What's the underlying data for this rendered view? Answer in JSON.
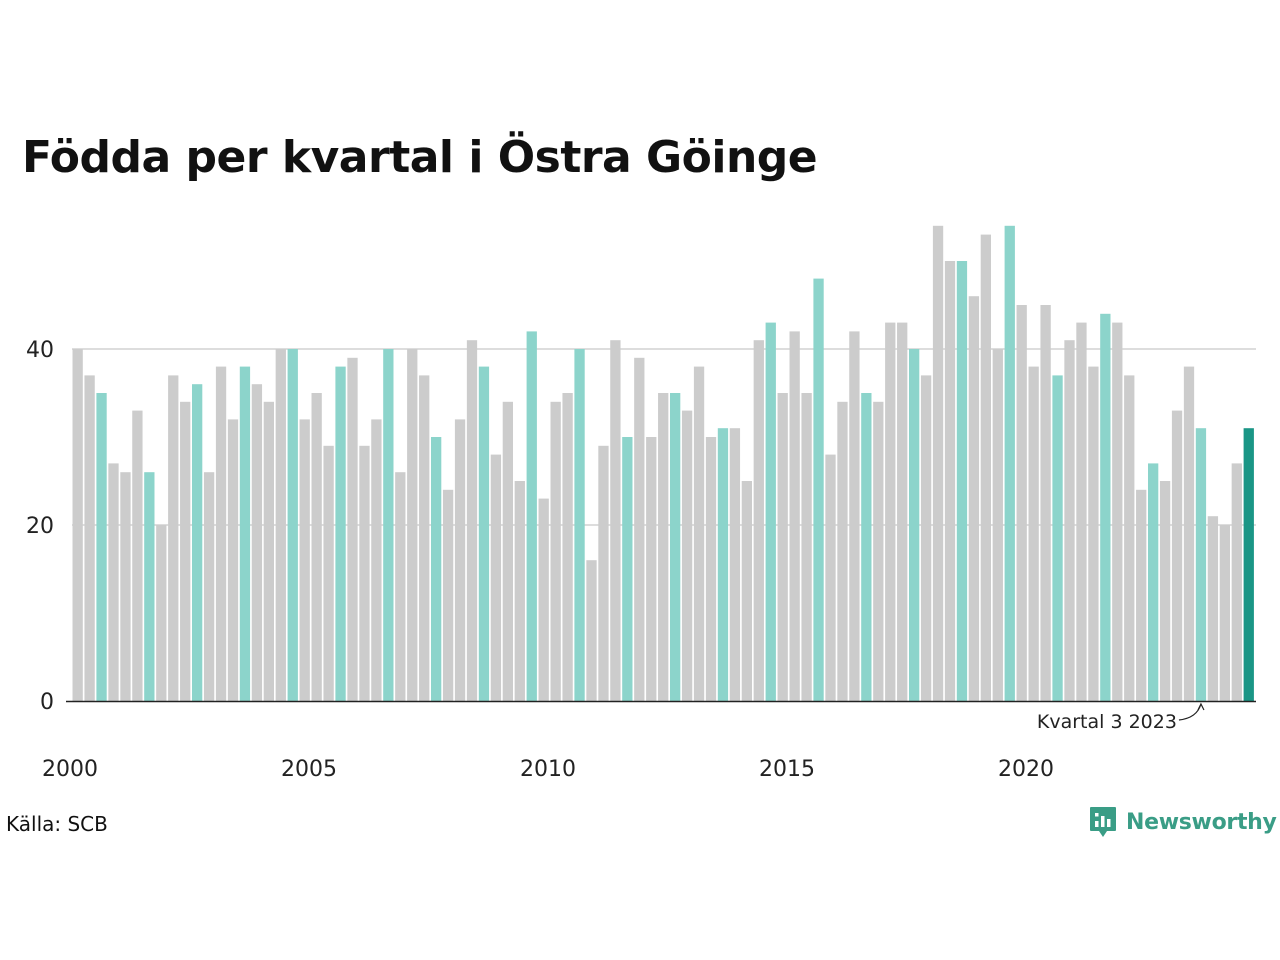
{
  "title": "Födda per kvartal i Östra Göinge",
  "source": "Källa: SCB",
  "brand": "Newsworthy",
  "colors": {
    "default": "#cccccc",
    "highlight": "#8cd4cb",
    "latest": "#1a9686",
    "brand": "#3a9d86",
    "grid": "#dddddd",
    "axis": "#222222"
  },
  "chart_data": {
    "type": "bar",
    "title": "Födda per kvartal i Östra Göinge",
    "xlabel": "",
    "ylabel": "",
    "ylim": [
      0,
      55
    ],
    "yticks": [
      0,
      20,
      40
    ],
    "xtick_labels": [
      "2000",
      "2005",
      "2010",
      "2015",
      "2020"
    ],
    "grid": true,
    "highlight_quarter": 3,
    "categories": [
      "2000 K1",
      "2000 K2",
      "2000 K3",
      "2000 K4",
      "2001 K1",
      "2001 K2",
      "2001 K3",
      "2001 K4",
      "2002 K1",
      "2002 K2",
      "2002 K3",
      "2002 K4",
      "2003 K1",
      "2003 K2",
      "2003 K3",
      "2003 K4",
      "2004 K1",
      "2004 K2",
      "2004 K3",
      "2004 K4",
      "2005 K1",
      "2005 K2",
      "2005 K3",
      "2005 K4",
      "2006 K1",
      "2006 K2",
      "2006 K3",
      "2006 K4",
      "2007 K1",
      "2007 K2",
      "2007 K3",
      "2007 K4",
      "2008 K1",
      "2008 K2",
      "2008 K3",
      "2008 K4",
      "2009 K1",
      "2009 K2",
      "2009 K3",
      "2009 K4",
      "2010 K1",
      "2010 K2",
      "2010 K3",
      "2010 K4",
      "2011 K1",
      "2011 K2",
      "2011 K3",
      "2011 K4",
      "2012 K1",
      "2012 K2",
      "2012 K3",
      "2012 K4",
      "2013 K1",
      "2013 K2",
      "2013 K3",
      "2013 K4",
      "2014 K1",
      "2014 K2",
      "2014 K3",
      "2014 K4",
      "2015 K1",
      "2015 K2",
      "2015 K3",
      "2015 K4",
      "2016 K1",
      "2016 K2",
      "2016 K3",
      "2016 K4",
      "2017 K1",
      "2017 K2",
      "2017 K3",
      "2017 K4",
      "2018 K1",
      "2018 K2",
      "2018 K3",
      "2018 K4",
      "2019 K1",
      "2019 K2",
      "2019 K3",
      "2019 K4",
      "2020 K1",
      "2020 K2",
      "2020 K3",
      "2020 K4",
      "2021 K1",
      "2021 K2",
      "2021 K3",
      "2021 K4",
      "2022 K1",
      "2022 K2",
      "2022 K3",
      "2022 K4",
      "2023 K1",
      "2023 K2",
      "2023 K3",
      "2023 K4",
      "2024 K1",
      "2024 K2",
      "2024 K3"
    ],
    "values": [
      40,
      37,
      35,
      27,
      26,
      33,
      26,
      20,
      37,
      34,
      36,
      26,
      38,
      32,
      38,
      36,
      34,
      40,
      40,
      32,
      35,
      29,
      38,
      39,
      29,
      32,
      40,
      26,
      40,
      37,
      30,
      24,
      32,
      41,
      38,
      28,
      34,
      25,
      42,
      23,
      34,
      35,
      40,
      16,
      29,
      41,
      30,
      39,
      30,
      35,
      35,
      33,
      38,
      30,
      31,
      31,
      25,
      41,
      43,
      35,
      42,
      35,
      48,
      28,
      34,
      42,
      35,
      34,
      43,
      43,
      40,
      37,
      54,
      50,
      50,
      46,
      53,
      40,
      54,
      45,
      38,
      45,
      37,
      41,
      43,
      38,
      44,
      43,
      37,
      24,
      27,
      25,
      33,
      38,
      31,
      21,
      20,
      27,
      31
    ],
    "annotation": {
      "text": "Kvartal 3 2023",
      "target": "2023 K3"
    }
  }
}
